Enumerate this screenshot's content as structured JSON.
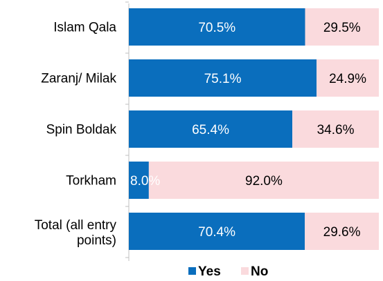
{
  "chart_data": {
    "type": "bar",
    "orientation": "horizontal",
    "stacked": true,
    "percent": true,
    "categories": [
      "Islam Qala",
      "Zaranj/ Milak",
      "Spin Boldak",
      "Torkham",
      "Total (all entry points)"
    ],
    "series": [
      {
        "name": "Yes",
        "values": [
          70.5,
          75.1,
          65.4,
          8.0,
          70.4
        ],
        "labels": [
          "70.5%",
          "75.1%",
          "65.4%",
          "8.0%",
          "70.4%"
        ],
        "color": "#0a6ebd",
        "label_color": "#ffffff"
      },
      {
        "name": "No",
        "values": [
          29.5,
          24.9,
          34.6,
          92.0,
          29.6
        ],
        "labels": [
          "29.5%",
          "24.9%",
          "34.6%",
          "92.0%",
          "29.6%"
        ],
        "color": "#fadadd",
        "label_color": "#000000"
      }
    ],
    "xlim": [
      0,
      100
    ],
    "grid": false,
    "legend_position": "bottom"
  }
}
